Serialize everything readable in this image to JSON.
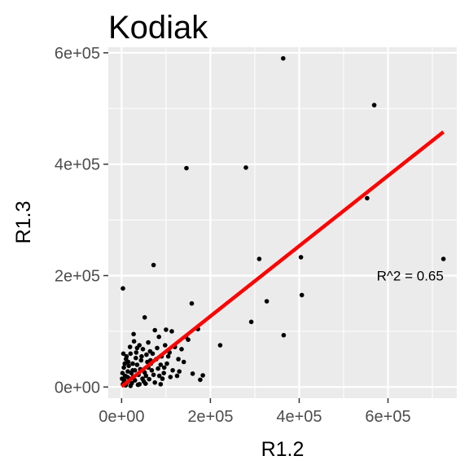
{
  "chart_data": {
    "type": "scatter",
    "title": "Kodiak",
    "xlabel": "R1.2",
    "ylabel": "R1.3",
    "xlim": [
      -30000,
      755000
    ],
    "ylim": [
      -20000,
      610000
    ],
    "x_ticks": [
      0,
      200000,
      400000,
      600000
    ],
    "x_tick_labels": [
      "0e+00",
      "2e+05",
      "4e+05",
      "6e+05"
    ],
    "y_ticks": [
      0,
      200000,
      400000,
      600000
    ],
    "y_tick_labels": [
      "0e+00",
      "2e+05",
      "4e+05",
      "6e+05"
    ],
    "grid": true,
    "background": "#ebebeb",
    "grid_color": "#ffffff",
    "point_color": "#000000",
    "fit_line": {
      "color": "#ff0000",
      "x": [
        0,
        725000
      ],
      "y": [
        1000,
        458000
      ]
    },
    "annotation": {
      "text": "R^2 = 0.65",
      "x": 650000,
      "y": 200000
    },
    "points": [
      [
        364000,
        590000
      ],
      [
        569000,
        506000
      ],
      [
        280000,
        394000
      ],
      [
        146000,
        393000
      ],
      [
        553000,
        339000
      ],
      [
        72000,
        219000
      ],
      [
        310000,
        230000
      ],
      [
        404000,
        233000
      ],
      [
        725000,
        230000
      ],
      [
        3000,
        177000
      ],
      [
        406000,
        165000
      ],
      [
        327000,
        154000
      ],
      [
        158000,
        150000
      ],
      [
        52000,
        125000
      ],
      [
        292000,
        117000
      ],
      [
        172000,
        104000
      ],
      [
        365000,
        93000
      ],
      [
        222000,
        75000
      ],
      [
        160000,
        24000
      ],
      [
        183000,
        21000
      ],
      [
        177000,
        13000
      ],
      [
        100000,
        103000
      ],
      [
        75000,
        102000
      ],
      [
        113000,
        100000
      ],
      [
        84000,
        90000
      ],
      [
        98000,
        75000
      ],
      [
        120000,
        72000
      ],
      [
        135000,
        68000
      ],
      [
        145000,
        90000
      ],
      [
        105000,
        55000
      ],
      [
        128000,
        50000
      ],
      [
        140000,
        45000
      ],
      [
        115000,
        30000
      ],
      [
        95000,
        25000
      ],
      [
        92000,
        15000
      ],
      [
        110000,
        18000
      ],
      [
        130000,
        28000
      ],
      [
        150000,
        85000
      ],
      [
        80000,
        70000
      ],
      [
        70000,
        60000
      ],
      [
        65000,
        48000
      ],
      [
        88000,
        40000
      ],
      [
        60000,
        35000
      ],
      [
        55000,
        20000
      ],
      [
        50000,
        10000
      ],
      [
        75000,
        8000
      ],
      [
        40000,
        5000
      ],
      [
        30000,
        12000
      ],
      [
        45000,
        55000
      ],
      [
        35000,
        40000
      ],
      [
        25000,
        30000
      ],
      [
        20000,
        60000
      ],
      [
        15000,
        45000
      ],
      [
        28000,
        82000
      ],
      [
        35000,
        70000
      ],
      [
        60000,
        80000
      ],
      [
        48000,
        68000
      ],
      [
        10000,
        50000
      ],
      [
        8000,
        20000
      ],
      [
        5000,
        35000
      ],
      [
        12000,
        8000
      ],
      [
        18000,
        15000
      ],
      [
        22000,
        25000
      ],
      [
        3000,
        5000
      ],
      [
        6000,
        12000
      ],
      [
        14000,
        28000
      ],
      [
        25000,
        42000
      ],
      [
        38000,
        22000
      ],
      [
        42000,
        32000
      ],
      [
        52000,
        26000
      ],
      [
        62000,
        14000
      ],
      [
        68000,
        30000
      ],
      [
        85000,
        20000
      ],
      [
        90000,
        55000
      ],
      [
        102000,
        42000
      ],
      [
        20000,
        2000
      ],
      [
        32000,
        52000
      ],
      [
        4000,
        60000
      ],
      [
        9000,
        3000
      ],
      [
        16000,
        38000
      ],
      [
        26000,
        18000
      ],
      [
        44000,
        48000
      ],
      [
        56000,
        58000
      ],
      [
        66000,
        42000
      ],
      [
        78000,
        50000
      ],
      [
        1000,
        15000
      ],
      [
        2000,
        25000
      ],
      [
        7000,
        42000
      ],
      [
        11000,
        55000
      ],
      [
        23000,
        7000
      ],
      [
        47000,
        15000
      ],
      [
        58000,
        45000
      ],
      [
        72000,
        22000
      ],
      [
        82000,
        33000
      ],
      [
        96000,
        35000
      ],
      [
        108000,
        62000
      ],
      [
        125000,
        20000
      ],
      [
        33000,
        62000
      ],
      [
        19000,
        72000
      ],
      [
        27000,
        95000
      ],
      [
        13000,
        18000
      ],
      [
        5000,
        8000
      ],
      [
        37000,
        4000
      ],
      [
        54000,
        6000
      ],
      [
        88000,
        5000
      ],
      [
        30000,
        30000
      ],
      [
        40000,
        75000
      ],
      [
        64000,
        64000
      ]
    ]
  }
}
